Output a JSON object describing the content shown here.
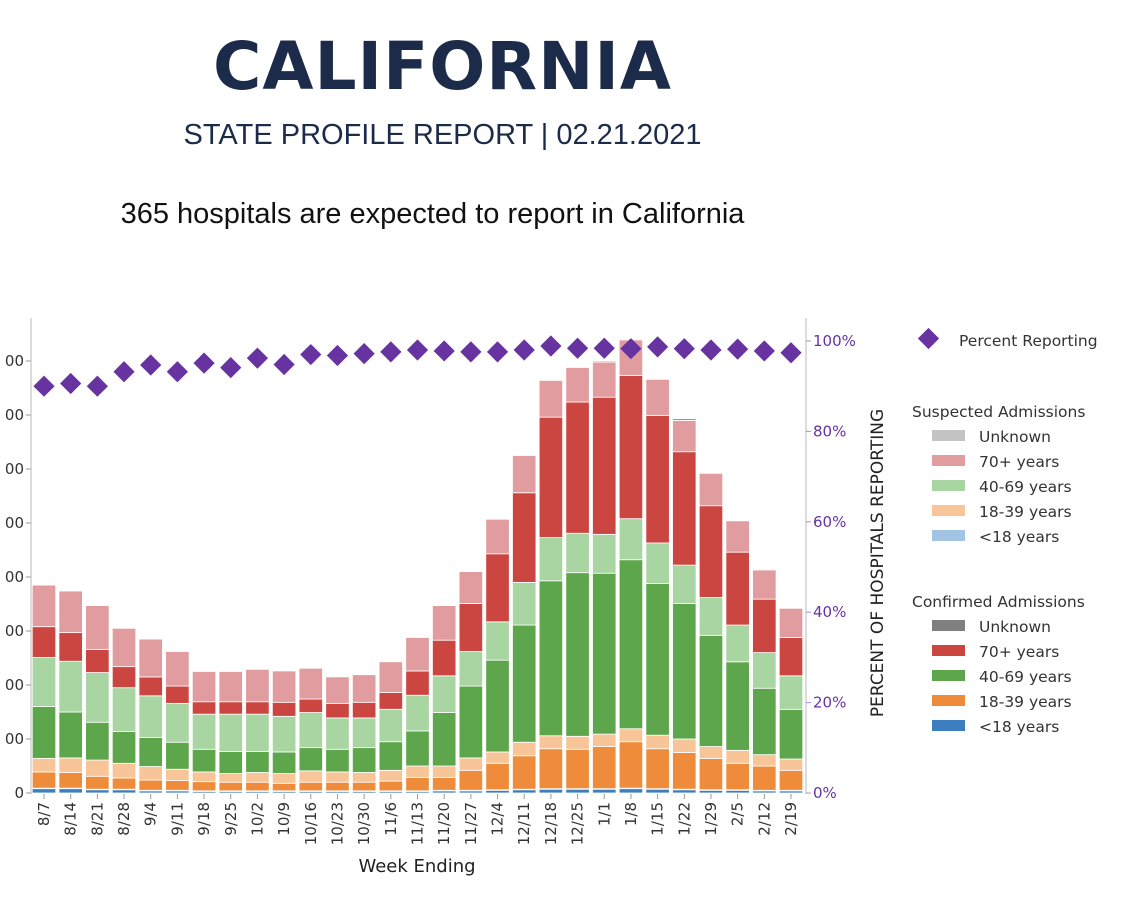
{
  "header": {
    "title": "CALIFORNIA",
    "subtitle": "STATE PROFILE REPORT | 02.21.2021",
    "headline": "365 hospitals are expected to report in California"
  },
  "chart_data": {
    "type": "bar",
    "stacked": true,
    "xlabel": "Week Ending",
    "ylabel_right": "PERCENT OF HOSPITALS REPORTING",
    "left_tick_labels": [
      "0",
      "00",
      "00",
      "00",
      "00",
      "00",
      "00",
      "00",
      "00"
    ],
    "right_tick_labels": [
      "0%",
      "20%",
      "40%",
      "60%",
      "80%",
      "100%"
    ],
    "right_ylim": [
      0,
      100
    ],
    "left_ylim_units": [
      0,
      880
    ],
    "categories": [
      "8/7",
      "8/14",
      "8/21",
      "8/28",
      "9/4",
      "9/11",
      "9/18",
      "9/25",
      "10/2",
      "10/9",
      "10/16",
      "10/23",
      "10/30",
      "11/6",
      "11/13",
      "11/20",
      "11/27",
      "12/4",
      "12/11",
      "12/18",
      "12/25",
      "1/1",
      "1/8",
      "1/15",
      "1/22",
      "1/29",
      "2/5",
      "2/12",
      "2/19"
    ],
    "series": [
      {
        "name": "Confirmed <18 years",
        "group": "confirmed",
        "color": "#3d7ebf",
        "values": [
          8,
          8,
          6,
          6,
          4,
          4,
          3,
          3,
          3,
          3,
          3,
          3,
          3,
          3,
          3,
          4,
          4,
          5,
          6,
          7,
          7,
          7,
          8,
          7,
          6,
          5,
          5,
          4,
          4
        ]
      },
      {
        "name": "Suspected <18 years",
        "group": "suspected",
        "color": "#a3c4e4",
        "values": [
          1,
          1,
          1,
          1,
          1,
          1,
          1,
          1,
          1,
          1,
          1,
          1,
          1,
          1,
          1,
          1,
          1,
          1,
          1,
          1,
          1,
          1,
          1,
          1,
          1,
          1,
          1,
          1,
          1
        ]
      },
      {
        "name": "Confirmed 18-39 years",
        "group": "confirmed",
        "color": "#ef8c3b",
        "values": [
          30,
          29,
          24,
          21,
          19,
          18,
          17,
          16,
          16,
          14,
          16,
          16,
          16,
          18,
          25,
          24,
          37,
          49,
          62,
          74,
          73,
          78,
          86,
          74,
          68,
          58,
          49,
          45,
          37
        ]
      },
      {
        "name": "Suspected 18-39 years",
        "group": "suspected",
        "color": "#f7c597",
        "values": [
          25,
          27,
          30,
          27,
          25,
          21,
          18,
          16,
          18,
          18,
          21,
          19,
          18,
          20,
          21,
          21,
          23,
          21,
          25,
          24,
          24,
          23,
          24,
          25,
          25,
          22,
          24,
          21,
          21
        ]
      },
      {
        "name": "Confirmed 40-69 years",
        "group": "confirmed",
        "color": "#5ea64b",
        "values": [
          96,
          85,
          70,
          59,
          54,
          50,
          42,
          41,
          39,
          40,
          43,
          42,
          46,
          53,
          65,
          99,
          133,
          170,
          217,
          287,
          303,
          298,
          313,
          281,
          251,
          206,
          164,
          123,
          92
        ]
      },
      {
        "name": "Suspected 40-69 years",
        "group": "suspected",
        "color": "#a9d5a3",
        "values": [
          91,
          94,
          92,
          81,
          77,
          72,
          65,
          69,
          69,
          66,
          65,
          58,
          55,
          60,
          66,
          68,
          64,
          71,
          79,
          80,
          73,
          72,
          76,
          75,
          71,
          70,
          68,
          66,
          62
        ]
      },
      {
        "name": "Confirmed 70+ years",
        "group": "confirmed",
        "color": "#cc4641",
        "values": [
          57,
          53,
          43,
          39,
          35,
          32,
          23,
          23,
          23,
          26,
          25,
          27,
          29,
          31,
          45,
          66,
          89,
          126,
          166,
          223,
          243,
          254,
          265,
          236,
          210,
          170,
          135,
          99,
          71
        ]
      },
      {
        "name": "Suspected 70+ years",
        "group": "suspected",
        "color": "#e09c9e",
        "values": [
          77,
          77,
          81,
          71,
          70,
          64,
          56,
          56,
          60,
          58,
          57,
          49,
          51,
          57,
          62,
          64,
          59,
          64,
          69,
          68,
          64,
          65,
          66,
          67,
          58,
          60,
          58,
          54,
          54
        ]
      },
      {
        "name": "Confirmed Unknown",
        "group": "confirmed",
        "color": "#808080",
        "values": [
          0,
          0,
          0,
          0,
          0,
          0,
          0,
          0,
          0,
          0,
          0,
          0,
          0,
          0,
          0,
          0,
          0,
          0,
          0,
          0,
          0,
          2,
          0,
          0,
          3,
          0,
          0,
          0,
          0
        ]
      },
      {
        "name": "Suspected Unknown",
        "group": "suspected",
        "color": "#c4c4c4",
        "values": [
          0,
          0,
          0,
          0,
          0,
          0,
          0,
          0,
          0,
          0,
          0,
          0,
          0,
          0,
          0,
          0,
          0,
          0,
          0,
          0,
          0,
          0,
          0,
          0,
          0,
          0,
          0,
          0,
          0
        ]
      }
    ],
    "percent_reporting": {
      "name": "Percent Reporting",
      "color": "#6633a0",
      "values": [
        90.0,
        90.6,
        90.0,
        93.2,
        94.7,
        93.2,
        95.1,
        94.1,
        96.2,
        94.8,
        97.0,
        96.8,
        97.2,
        97.6,
        98.0,
        97.8,
        97.6,
        97.6,
        98.0,
        98.9,
        98.4,
        98.4,
        98.3,
        98.7,
        98.3,
        98.0,
        98.2,
        97.8,
        97.4
      ]
    },
    "legend": {
      "placement": "right",
      "percent_label": "Percent Reporting",
      "suspected_title": "Suspected Admissions",
      "confirmed_title": "Confirmed Admissions",
      "suspected_items": [
        {
          "label": "Unknown",
          "color": "#c4c4c4"
        },
        {
          "label": "70+ years",
          "color": "#e09c9e"
        },
        {
          "label": "40-69 years",
          "color": "#a9d5a3"
        },
        {
          "label": "18-39 years",
          "color": "#f7c597"
        },
        {
          "label": "<18 years",
          "color": "#a3c4e4"
        }
      ],
      "confirmed_items": [
        {
          "label": "Unknown",
          "color": "#808080"
        },
        {
          "label": "70+ years",
          "color": "#cc4641"
        },
        {
          "label": "40-69 years",
          "color": "#5ea64b"
        },
        {
          "label": "18-39 years",
          "color": "#ef8c3b"
        },
        {
          "label": "<18 years",
          "color": "#3d7ebf"
        }
      ]
    }
  }
}
